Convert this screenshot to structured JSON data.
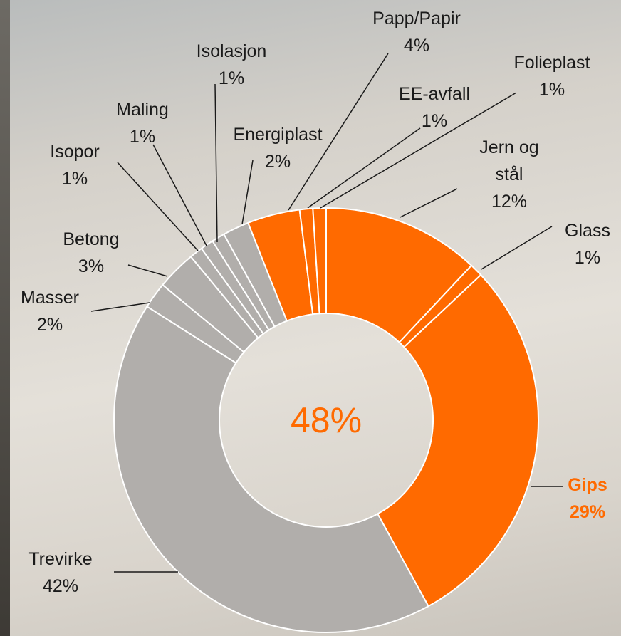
{
  "chart_data": {
    "type": "donut",
    "center_label": "48%",
    "categories": [
      "Jern og stål",
      "Glass",
      "Gips",
      "Trevirke",
      "Masser",
      "Betong",
      "Isopor",
      "Maling",
      "Isolasjon",
      "Energiplast",
      "Papp/Papir",
      "EE-avfall",
      "Folieplast"
    ],
    "values": [
      12,
      1,
      29,
      42,
      2,
      3,
      1,
      1,
      1,
      2,
      4,
      1,
      1
    ],
    "value_labels": [
      "12%",
      "1%",
      "29%",
      "42%",
      "2%",
      "3%",
      "1%",
      "1%",
      "1%",
      "2%",
      "4%",
      "1%",
      "1%"
    ],
    "colors": [
      "#ff6a00",
      "#ff6a00",
      "#ff6a00",
      "#b1aeab",
      "#b1aeab",
      "#b1aeab",
      "#b1aeab",
      "#b1aeab",
      "#b1aeab",
      "#b1aeab",
      "#ff6a00",
      "#ff6a00",
      "#ff6a00"
    ],
    "highlight": "Gips"
  }
}
